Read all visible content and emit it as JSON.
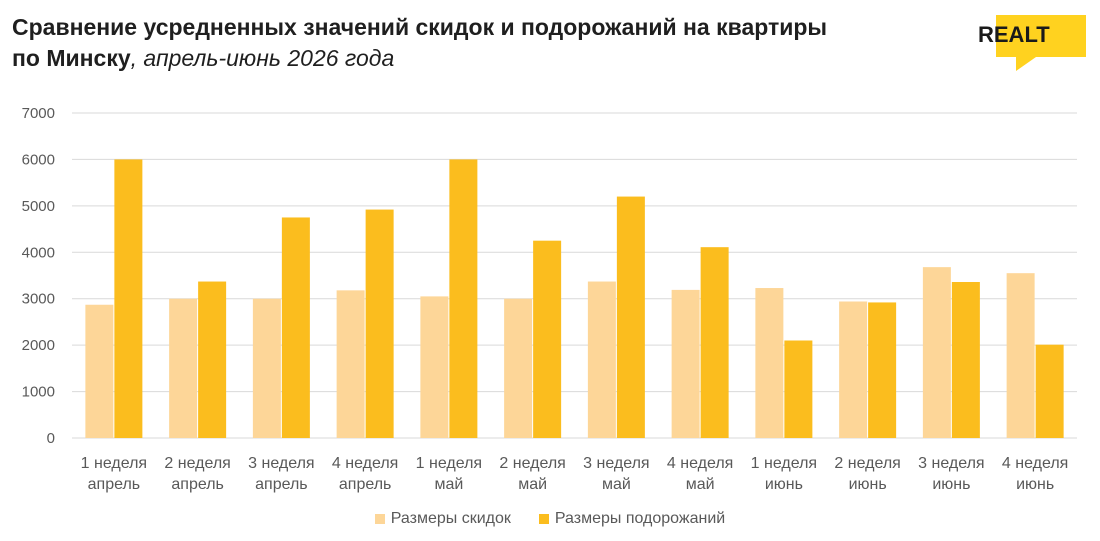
{
  "title": {
    "line1": "Сравнение усредненных значений скидок и подорожаний на квартиры",
    "line2_bold": "по Минску",
    "line2_italic": ", апрель-июнь 2026 года"
  },
  "logo": {
    "text": "REALT",
    "color": "#ffd21f"
  },
  "colors": {
    "discounts": "#fdd698",
    "increases": "#fbbd1e",
    "grid": "#d9d9d9",
    "text": "#595959"
  },
  "chart_data": {
    "type": "bar",
    "ylim": [
      0,
      7000
    ],
    "yticks": [
      0,
      1000,
      2000,
      3000,
      4000,
      5000,
      6000,
      7000
    ],
    "grid": true,
    "legend_position": "bottom",
    "categories": [
      [
        "1 неделя",
        "апрель"
      ],
      [
        "2 неделя",
        "апрель"
      ],
      [
        "3 неделя",
        "апрель"
      ],
      [
        "4 неделя",
        "апрель"
      ],
      [
        "1 неделя",
        "май"
      ],
      [
        "2 неделя",
        "май"
      ],
      [
        "3 неделя",
        "май"
      ],
      [
        "4 неделя",
        "май"
      ],
      [
        "1 неделя",
        "июнь"
      ],
      [
        "2 неделя",
        "июнь"
      ],
      [
        "3 неделя",
        "июнь"
      ],
      [
        "4 неделя",
        "июнь"
      ]
    ],
    "series": [
      {
        "name": "Размеры скидок",
        "values": [
          2870,
          3000,
          3000,
          3180,
          3050,
          3000,
          3370,
          3190,
          3230,
          2940,
          3680,
          3550
        ]
      },
      {
        "name": "Размеры подорожаний",
        "values": [
          6000,
          3370,
          4750,
          4920,
          6000,
          4250,
          5200,
          4110,
          2100,
          2920,
          3360,
          2010
        ]
      }
    ]
  }
}
